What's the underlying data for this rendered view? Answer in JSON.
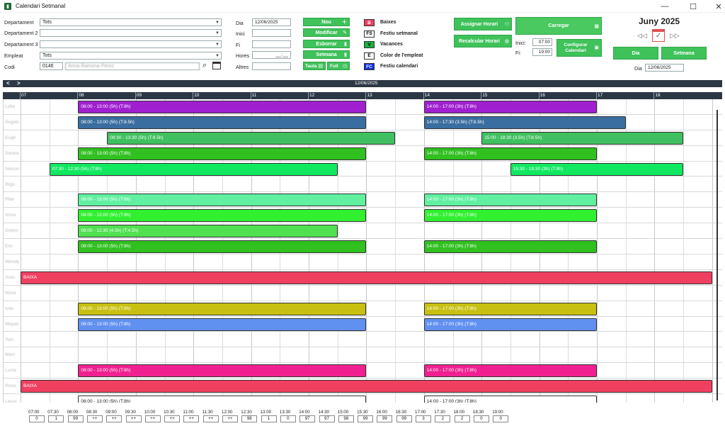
{
  "window": {
    "title": "Calendari Setmanal",
    "app_icon": "app-logo-icon",
    "minimize": "—",
    "maximize": "☐",
    "close": "✕"
  },
  "filters": {
    "departament_label": "Departament",
    "departament_value": "Tots",
    "departament2_label": "Departament 2",
    "departament2_value": "",
    "departament3_label": "Departament 3",
    "departament3_value": "",
    "empleat_label": "Empleat",
    "empleat_value": "Tots",
    "codi_label": "Codi",
    "codi_value": "0146",
    "codi_name": "Anna Ramona Perez"
  },
  "shift_form": {
    "dia_label": "Dia",
    "dia_value": "12/06/2025",
    "inici_label": "Inici",
    "inici_value": "",
    "fi_label": "Fi",
    "fi_value": "",
    "hores_label": "Hores",
    "hores_value": "__:__",
    "altres_label": "Altres",
    "altres_value": ""
  },
  "actions": {
    "nou": "Nou",
    "modificar": "Modificar",
    "esborrar": "Esborrar",
    "setmana": "Setmana",
    "taula": "Taula",
    "full": "Full"
  },
  "legend": [
    {
      "code": "B",
      "label": "Baixes",
      "color": "#f04060",
      "text_color": "#fff"
    },
    {
      "code": "FS",
      "label": "Festiu setmanal",
      "color": "#ffffff",
      "text_color": "#000"
    },
    {
      "code": "V",
      "label": "Vacances",
      "color": "#18b040",
      "text_color": "#000"
    },
    {
      "code": "E",
      "label": "Color de l'empleat",
      "color": "#ffffff",
      "text_color": "#000"
    },
    {
      "code": "FC",
      "label": "Festiu calendari",
      "color": "#1030e0",
      "text_color": "#fff"
    }
  ],
  "right_panel": {
    "assignar": "Assignar Horari",
    "recalcular": "Recalcular Horari",
    "carregar": "Carregar",
    "inici_label": "Inici:",
    "inici_value": "07:00",
    "fi_label": "Fi:",
    "fi_value": "19:00",
    "configurar": "Configurar Calendari",
    "month": "Juny 2025",
    "view_dia": "Dia",
    "view_setmana": "Setmana",
    "dia_label": "Dia",
    "dia_value": "12/06/2025"
  },
  "calendar": {
    "date_header": "12/06/2025",
    "prev": "<",
    "next": ">",
    "hours": [
      "07",
      "08",
      "09",
      "10",
      "11",
      "12",
      "13",
      "14",
      "15",
      "16",
      "17",
      "18"
    ],
    "rows": [
      {
        "name": "Lídia",
        "shifts": [
          {
            "start": 8,
            "end": 13,
            "label": "08:00 - 13:00 (5h) (T:8h)",
            "color": "#a020d0"
          },
          {
            "start": 14,
            "end": 17,
            "label": "14:00 - 17:00 (3h) (T:8h)",
            "color": "#a020d0"
          }
        ]
      },
      {
        "name": "Àngels",
        "shifts": [
          {
            "start": 8,
            "end": 13,
            "label": "08:00 - 13:00 (5h) (T:8.5h)",
            "color": "#3a6ea0"
          },
          {
            "start": 14,
            "end": 17.5,
            "label": "14:00 - 17:30 (3.5h) (T:8.5h)",
            "color": "#3a6ea0"
          }
        ]
      },
      {
        "name": "Eugè",
        "shifts": [
          {
            "start": 8.5,
            "end": 13.5,
            "label": "08:30 - 13:30 (5h) (T:8.5h)",
            "color": "#40c060"
          },
          {
            "start": 15,
            "end": 18.5,
            "label": "15:00 - 18:30 (3.5h) (T:8.5h)",
            "color": "#40c060"
          }
        ]
      },
      {
        "name": "Santos",
        "shifts": [
          {
            "start": 8,
            "end": 13,
            "label": "08:00 - 13:00 (5h) (T:8h)",
            "color": "#30c020"
          },
          {
            "start": 14,
            "end": 17,
            "label": "14:00 - 17:00 (3h) (T:8h)",
            "color": "#30c020"
          }
        ]
      },
      {
        "name": "Nelson",
        "shifts": [
          {
            "start": 7.5,
            "end": 12.5,
            "label": "07:30 - 12:30 (5h) (T:8h)",
            "color": "#10e860"
          },
          {
            "start": 15.5,
            "end": 18.5,
            "label": "15:30 - 18:30 (3h) (T:8h)",
            "color": "#10e860"
          }
        ]
      },
      {
        "name": "Iñigo",
        "shifts": []
      },
      {
        "name": "Pilar",
        "shifts": [
          {
            "start": 8,
            "end": 13,
            "label": "08:00 - 13:00 (5h) (T:8h)",
            "color": "#60f0a0"
          },
          {
            "start": 14,
            "end": 17,
            "label": "14:00 - 17:00 (3h) (T:8h)",
            "color": "#60f0a0"
          }
        ]
      },
      {
        "name": "Anna",
        "shifts": [
          {
            "start": 8,
            "end": 13,
            "label": "08:00 - 13:00 (5h) (T:8h)",
            "color": "#30f030"
          },
          {
            "start": 14,
            "end": 17,
            "label": "14:00 - 17:00 (3h) (T:8h)",
            "color": "#30f030"
          }
        ]
      },
      {
        "name": "Dolors",
        "shifts": [
          {
            "start": 8,
            "end": 12.5,
            "label": "08:00 - 12:30 (4.5h) (T:4.5h)",
            "color": "#50e050"
          }
        ]
      },
      {
        "name": "Eric",
        "shifts": [
          {
            "start": 8,
            "end": 13,
            "label": "08:00 - 13:00 (5h) (T:8h)",
            "color": "#30c020"
          },
          {
            "start": 14,
            "end": 17,
            "label": "14:00 - 17:00 (3h) (T:8h)",
            "color": "#30c020"
          }
        ]
      },
      {
        "name": "Wendy",
        "shifts": []
      },
      {
        "name": "Joan",
        "shifts": [
          {
            "start": 7,
            "end": 19,
            "label": "BAIXA",
            "color": "#f04060"
          }
        ]
      },
      {
        "name": "Núria",
        "shifts": []
      },
      {
        "name": "Iván",
        "shifts": [
          {
            "start": 8,
            "end": 13,
            "label": "08:00 - 13:00 (5h) (T:8h)",
            "color": "#c8c010"
          },
          {
            "start": 14,
            "end": 17,
            "label": "14:00 - 17:00 (3h) (T:8h)",
            "color": "#c8c010"
          }
        ]
      },
      {
        "name": "Miquel",
        "shifts": [
          {
            "start": 8,
            "end": 13,
            "label": "08:00 - 13:00 (5h) (T:8h)",
            "color": "#6090f0"
          },
          {
            "start": 14,
            "end": 17,
            "label": "14:00 - 17:00 (3h) (T:8h)",
            "color": "#6090f0"
          }
        ]
      },
      {
        "name": "Toni",
        "shifts": []
      },
      {
        "name": "Marc",
        "shifts": []
      },
      {
        "name": "Lucía",
        "shifts": [
          {
            "start": 8,
            "end": 13,
            "label": "08:00 - 13:00 (5h) (T:8h)",
            "color": "#f02090"
          },
          {
            "start": 14,
            "end": 17,
            "label": "14:00 - 17:00 (3h) (T:8h)",
            "color": "#f02090"
          }
        ]
      },
      {
        "name": "Rosa",
        "shifts": [
          {
            "start": 7,
            "end": 19,
            "label": "BAIXA",
            "color": "#f04060"
          }
        ]
      },
      {
        "name": "Laura",
        "shifts": [
          {
            "start": 8,
            "end": 13,
            "label": "08:00 - 13:00 (5h) (T:8h)",
            "color": "#ffffff"
          },
          {
            "start": 14,
            "end": 17,
            "label": "14:00 - 17:00 (3h) (T:8h)",
            "color": "#ffffff"
          }
        ]
      }
    ]
  },
  "counters": [
    {
      "time": "07:00",
      "value": "0"
    },
    {
      "time": "07:30",
      "value": "1"
    },
    {
      "time": "08:00",
      "value": "99"
    },
    {
      "time": "08:30",
      "value": "++"
    },
    {
      "time": "09:00",
      "value": "++"
    },
    {
      "time": "09:30",
      "value": "++"
    },
    {
      "time": "10:00",
      "value": "++"
    },
    {
      "time": "10:30",
      "value": "++"
    },
    {
      "time": "11:00",
      "value": "++"
    },
    {
      "time": "11:30",
      "value": "++"
    },
    {
      "time": "12:00",
      "value": "++"
    },
    {
      "time": "12:30",
      "value": "98"
    },
    {
      "time": "13:00",
      "value": "1"
    },
    {
      "time": "13:30",
      "value": "0"
    },
    {
      "time": "14:00",
      "value": "97"
    },
    {
      "time": "14:30",
      "value": "97"
    },
    {
      "time": "15:00",
      "value": "98"
    },
    {
      "time": "15:30",
      "value": "99"
    },
    {
      "time": "16:00",
      "value": "99"
    },
    {
      "time": "16:30",
      "value": "99"
    },
    {
      "time": "17:00",
      "value": "3"
    },
    {
      "time": "17:30",
      "value": "2"
    },
    {
      "time": "18:00",
      "value": "2"
    },
    {
      "time": "18:30",
      "value": "0"
    },
    {
      "time": "19:00",
      "value": "0"
    }
  ]
}
